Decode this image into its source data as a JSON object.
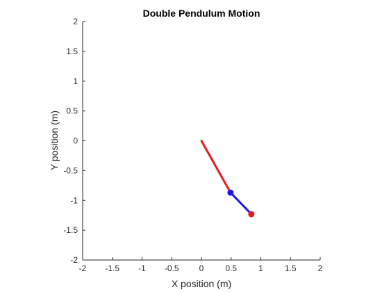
{
  "chart_data": {
    "type": "line",
    "title": "Double Pendulum Motion",
    "xlabel": "X position (m)",
    "ylabel": "Y position (m)",
    "xlim": [
      -2,
      2
    ],
    "ylim": [
      -2,
      2
    ],
    "xticks": [
      "-2",
      "-1.5",
      "-1",
      "-0.5",
      "0",
      "0.5",
      "1",
      "1.5",
      "2"
    ],
    "yticks": [
      "2",
      "1.5",
      "1",
      "0.5",
      "0",
      "-0.5",
      "-1",
      "-1.5",
      "-2"
    ],
    "grid": false,
    "pivot": [
      0,
      0
    ],
    "mass1": [
      0.49,
      -0.87
    ],
    "mass2": [
      0.84,
      -1.23
    ],
    "colors": {
      "rod1": "#e8191c",
      "rod2": "#1a1ae0",
      "mass1": "#1a1ae0",
      "mass2": "#e8191c",
      "axis": "#262626"
    }
  }
}
